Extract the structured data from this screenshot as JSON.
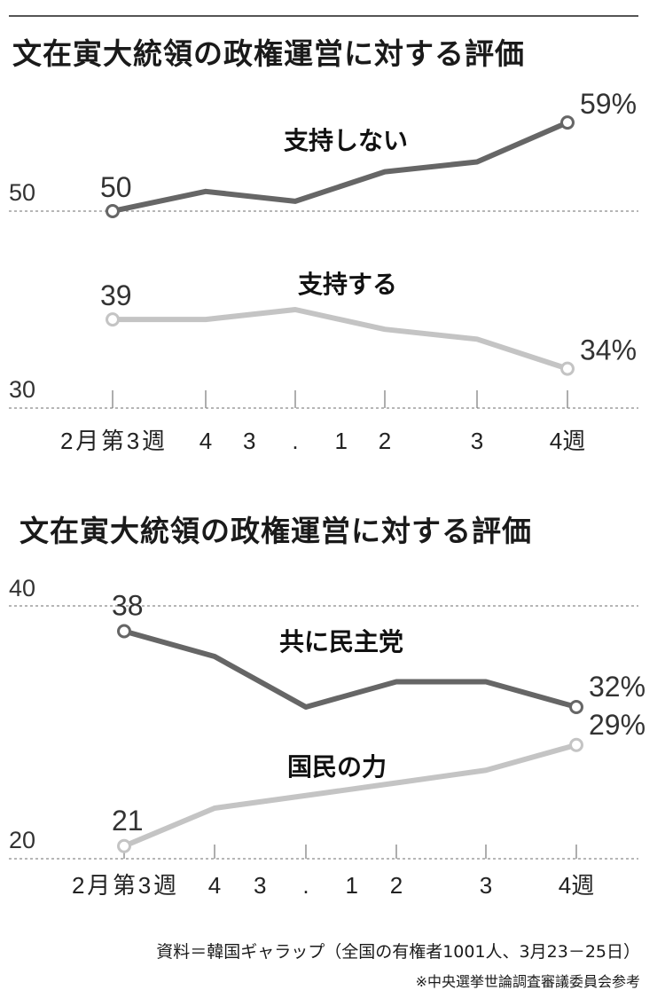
{
  "chart_data": [
    {
      "type": "line",
      "title": "文在寅大統領の政権運営に対する評価",
      "categories": [
        "2月第3週",
        "4",
        "3.1",
        "2",
        "3",
        "4週"
      ],
      "ylim": [
        30,
        60
      ],
      "y_ticks": [
        "50",
        "30"
      ],
      "grid": "dashed lines at tick values",
      "series": [
        {
          "name": "支持しない",
          "values": [
            50,
            52,
            51,
            54,
            55,
            59
          ],
          "color": "#666666",
          "labels": {
            "start": "50",
            "end": "59%"
          }
        },
        {
          "name": "支持する",
          "values": [
            39,
            39,
            40,
            38,
            37,
            34
          ],
          "color": "#c4c4c4",
          "labels": {
            "start": "39",
            "end": "34%"
          }
        }
      ]
    },
    {
      "type": "line",
      "title": "文在寅大統領の政権運営に対する評価",
      "categories": [
        "2月第3週",
        "4",
        "3.1",
        "2",
        "3",
        "4週"
      ],
      "ylim": [
        20,
        40
      ],
      "y_ticks": [
        "40",
        "20"
      ],
      "grid": "dashed lines at tick values",
      "series": [
        {
          "name": "共に民主党",
          "values": [
            38,
            36,
            32,
            34,
            34,
            32
          ],
          "color": "#666666",
          "labels": {
            "start": "38",
            "end": "32%"
          }
        },
        {
          "name": "国民の力",
          "values": [
            21,
            24,
            25,
            26,
            27,
            29
          ],
          "color": "#c4c4c4",
          "labels": {
            "start": "21",
            "end": "29%"
          }
        }
      ]
    }
  ],
  "footer": {
    "source": "資料＝韓国ギャラップ（全国の有権者1001人、3月23－25日）",
    "note": "※中央選挙世論調査審議委員会参考"
  }
}
